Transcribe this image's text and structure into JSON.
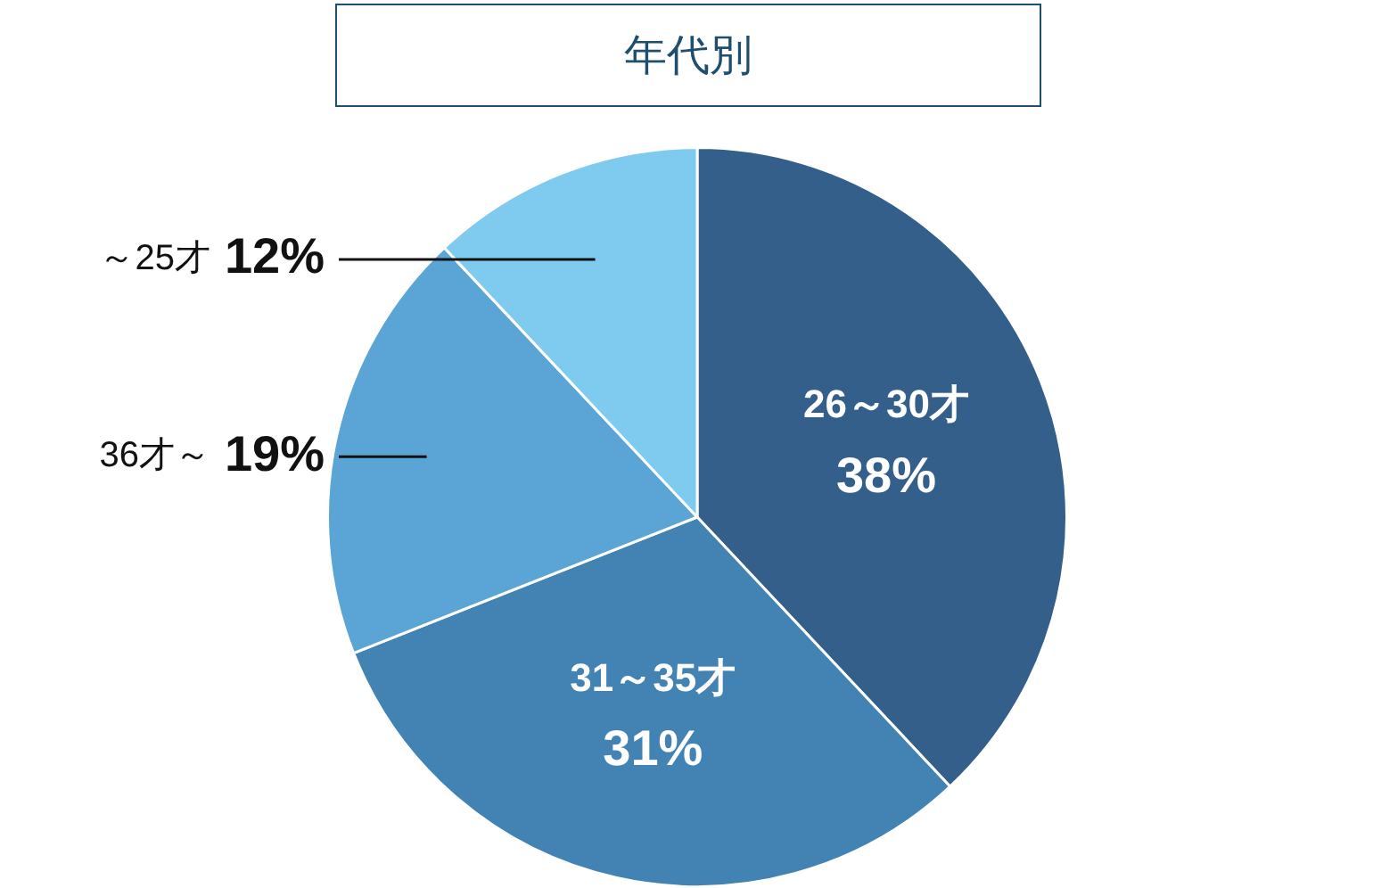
{
  "chart_data": {
    "type": "pie",
    "title": "年代別",
    "categories": [
      "26～30才",
      "31～35才",
      "36才～",
      "～25才"
    ],
    "values": [
      38,
      31,
      19,
      12
    ],
    "value_labels": [
      "38%",
      "31%",
      "19%",
      "12%"
    ],
    "colors": [
      "#335f8a",
      "#4383b3",
      "#5aa5d6",
      "#7fcbf0"
    ],
    "legend": false
  }
}
